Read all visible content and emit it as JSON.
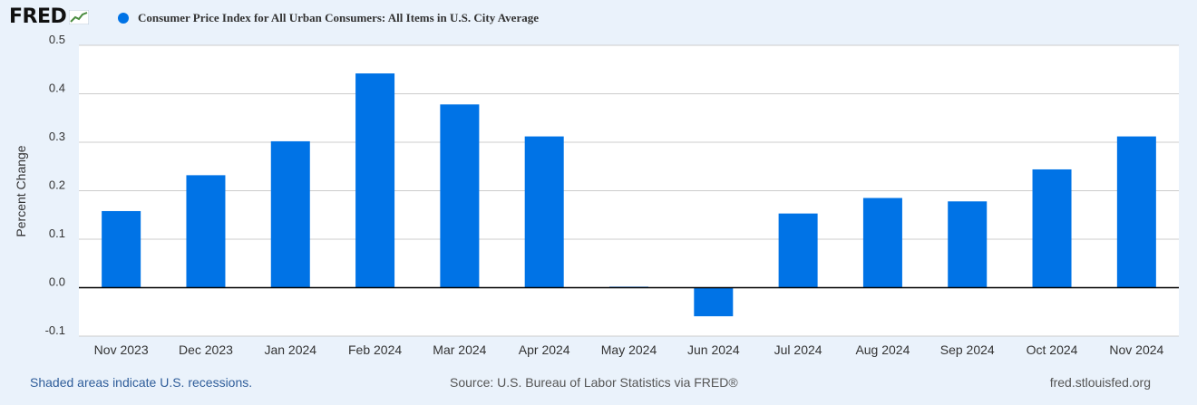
{
  "logo": {
    "text": "FRED"
  },
  "legend": {
    "label": "Consumer Price Index for All Urban Consumers: All Items in U.S. City Average"
  },
  "colors": {
    "series": "#0073e6",
    "background": "#eaf2fb",
    "plot_background": "#ffffff",
    "grid": "#cccccc",
    "zero_line": "#000000",
    "axis_text": "#333333"
  },
  "footer": {
    "recessions": "Shaded areas indicate U.S. recessions.",
    "source": "Source: U.S. Bureau of Labor Statistics via FRED®",
    "site": "fred.stlouisfed.org"
  },
  "chart_data": {
    "type": "bar",
    "ylabel": "Percent Change",
    "ylim": [
      -0.1,
      0.5
    ],
    "yticks": [
      0.5,
      0.4,
      0.3,
      0.2,
      0.1,
      0.0,
      -0.1
    ],
    "ytick_labels": [
      "0.5",
      "0.4",
      "0.3",
      "0.2",
      "0.1",
      "0.0",
      "-0.1"
    ],
    "grid": true,
    "legend_position": "top-left",
    "categories": [
      "Nov 2023",
      "Dec 2023",
      "Jan 2024",
      "Feb 2024",
      "Mar 2024",
      "Apr 2024",
      "May 2024",
      "Jun 2024",
      "Jul 2024",
      "Aug 2024",
      "Sep 2024",
      "Oct 2024",
      "Nov 2024"
    ],
    "series": [
      {
        "name": "Consumer Price Index for All Urban Consumers: All Items in U.S. City Average",
        "values": [
          0.158,
          0.232,
          0.302,
          0.442,
          0.378,
          0.312,
          0.002,
          -0.059,
          0.153,
          0.185,
          0.178,
          0.244,
          0.312
        ]
      }
    ]
  }
}
